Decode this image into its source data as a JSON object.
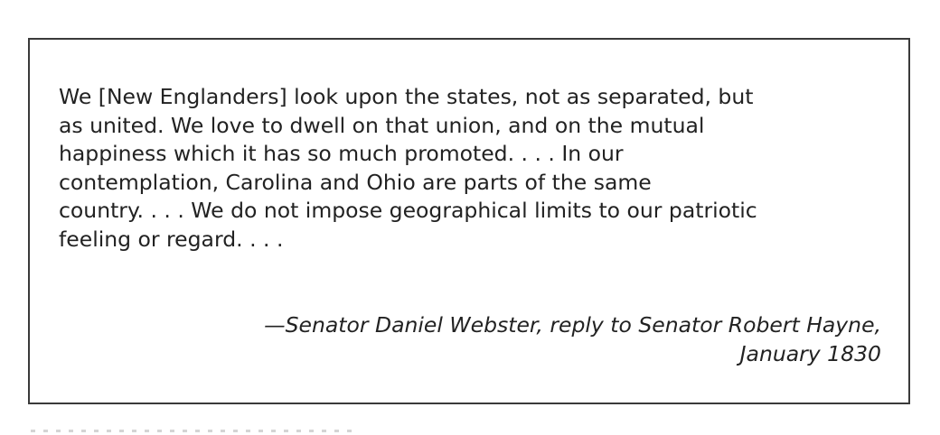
{
  "quote": {
    "lines": [
      "We [New Englanders] look upon the states, not as separated, but",
      "as united. We love to dwell on that union, and on the mutual",
      "happiness which it has so much promoted. . . . In our",
      "contemplation, Carolina and Ohio are parts of the same",
      "country. . . . We do not impose geographical limits to our patriotic",
      "feeling or regard. . . ."
    ],
    "attribution": {
      "line1": "—Senator Daniel Webster, reply to Senator Robert Hayne,",
      "line2": "January 1830"
    }
  },
  "colors": {
    "border": "#3a3a3a",
    "text": "#222222",
    "background": "#ffffff"
  }
}
